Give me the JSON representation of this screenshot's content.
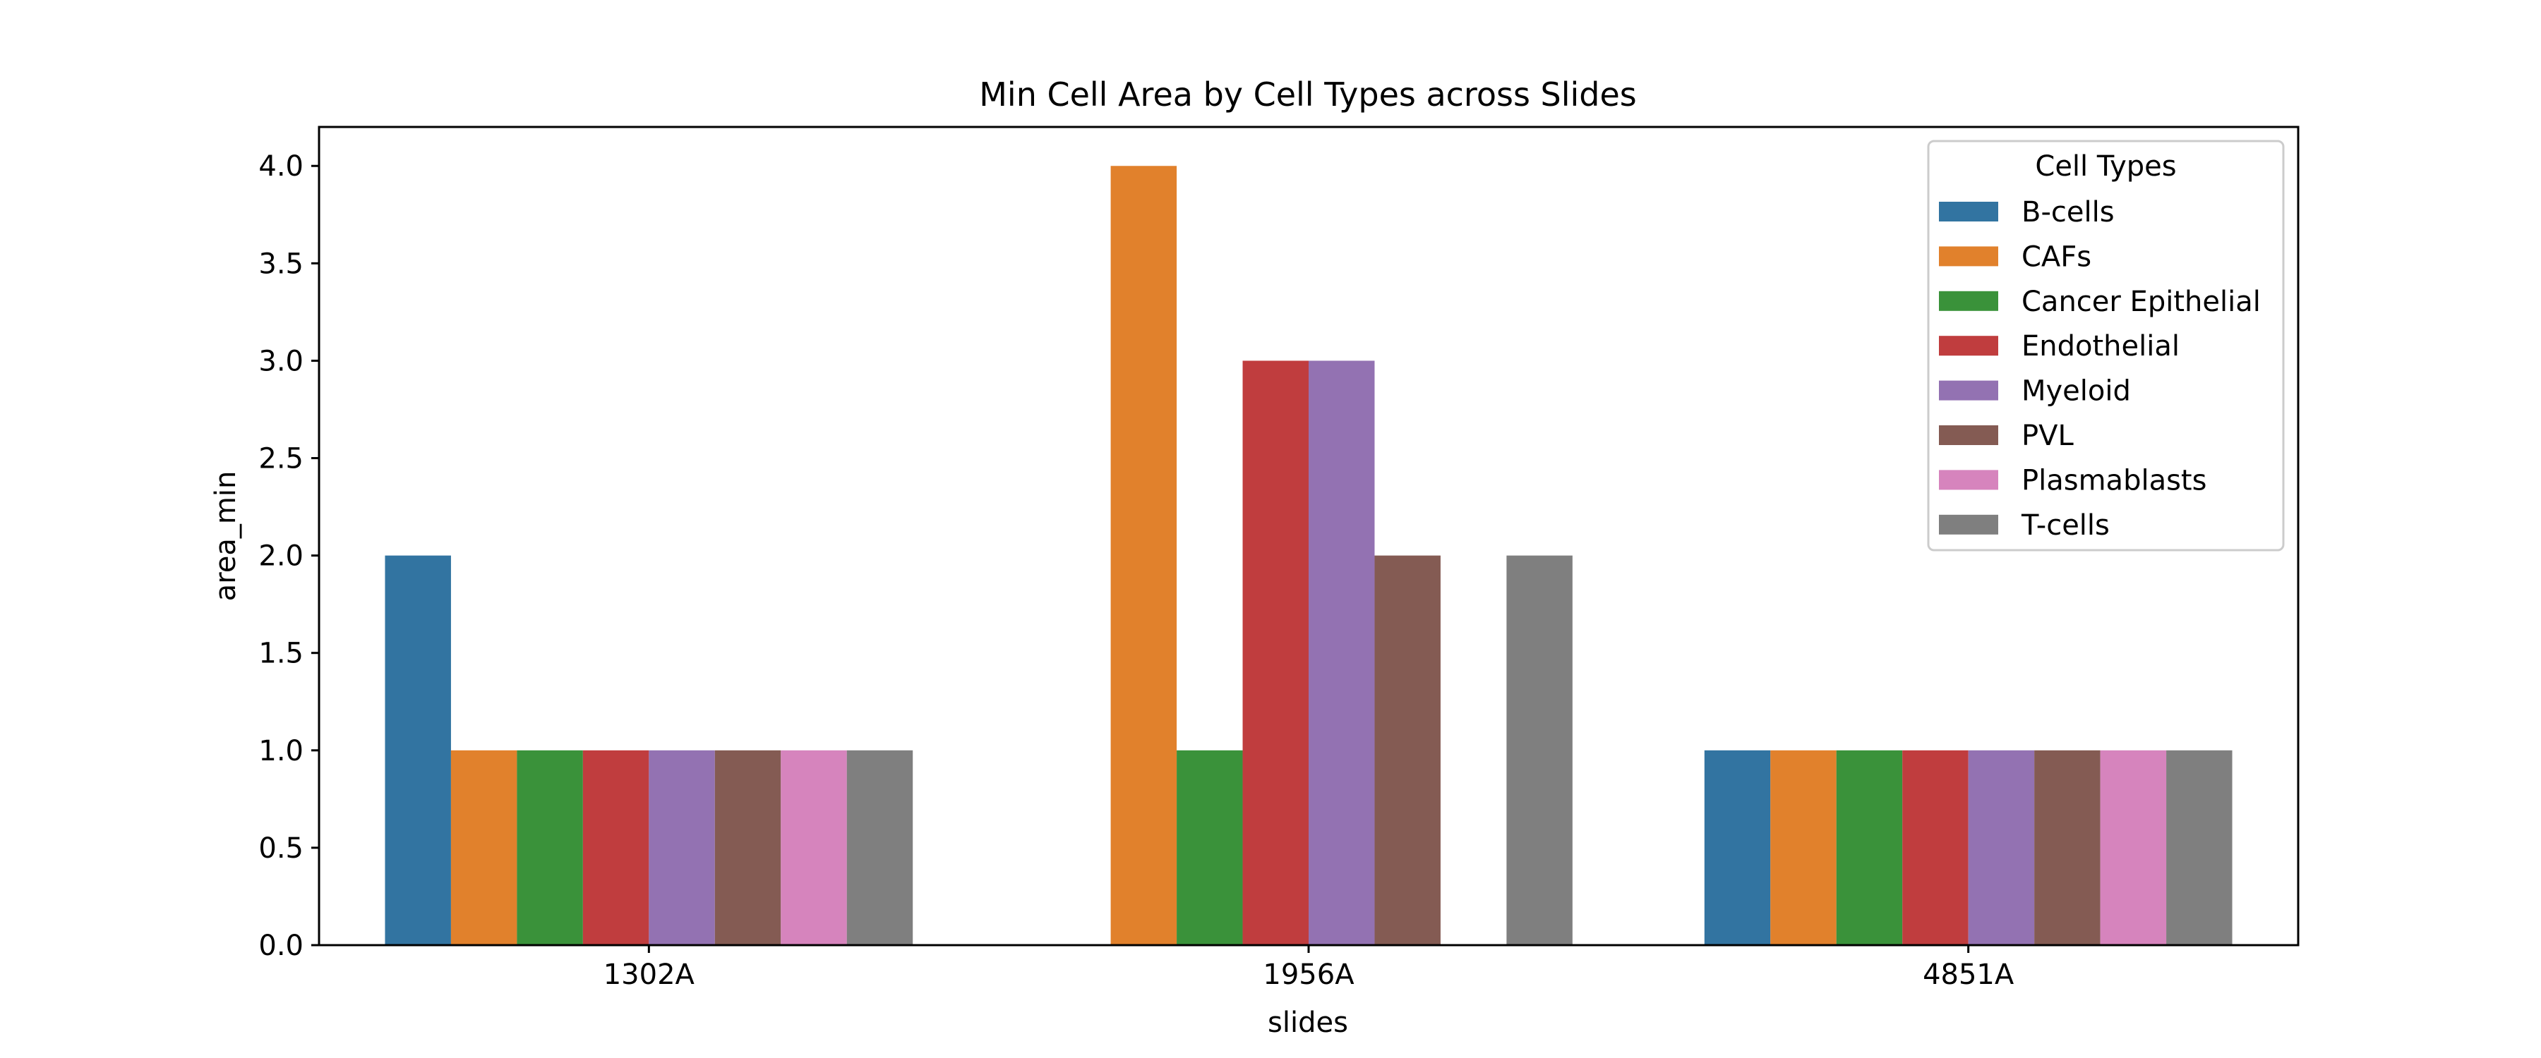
{
  "chart_data": {
    "type": "bar",
    "title": "Min Cell Area by Cell Types across Slides",
    "xlabel": "slides",
    "ylabel": "area_min",
    "categories": [
      "1302A",
      "1956A",
      "4851A"
    ],
    "ylim": [
      0,
      4.2
    ],
    "yticks": [
      "0.0",
      "0.5",
      "1.0",
      "1.5",
      "2.0",
      "2.5",
      "3.0",
      "3.5",
      "4.0"
    ],
    "grid": false,
    "legend": {
      "title": "Cell Types",
      "placement": "top-right"
    },
    "series": [
      {
        "name": "B-cells",
        "color": "#3274a1",
        "values": [
          2,
          null,
          1
        ]
      },
      {
        "name": "CAFs",
        "color": "#e1812c",
        "values": [
          1,
          4,
          1
        ]
      },
      {
        "name": "Cancer Epithelial",
        "color": "#3a923a",
        "values": [
          1,
          1,
          1
        ]
      },
      {
        "name": "Endothelial",
        "color": "#c03d3e",
        "values": [
          1,
          3,
          1
        ]
      },
      {
        "name": "Myeloid",
        "color": "#9372b2",
        "values": [
          1,
          3,
          1
        ]
      },
      {
        "name": "PVL",
        "color": "#845b53",
        "values": [
          1,
          2,
          1
        ]
      },
      {
        "name": "Plasmablasts",
        "color": "#d684bd",
        "values": [
          1,
          null,
          1
        ]
      },
      {
        "name": "T-cells",
        "color": "#7f7f7f",
        "values": [
          1,
          2,
          1
        ]
      }
    ]
  }
}
